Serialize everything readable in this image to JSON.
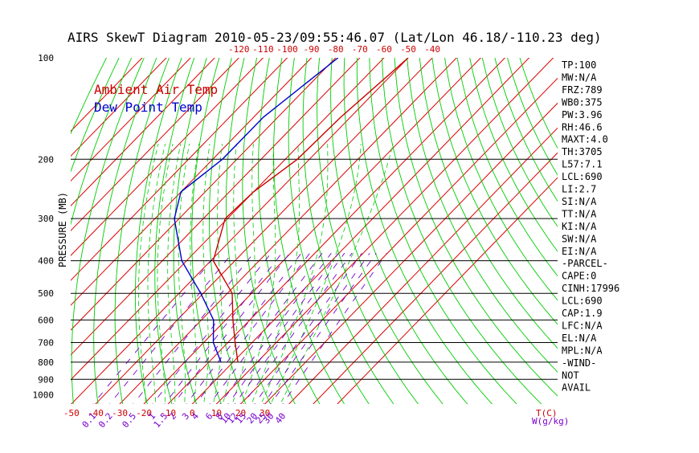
{
  "chart_data": {
    "type": "line",
    "title": "AIRS SkewT Diagram 2010-05-23/09:55:46.07 (Lat/Lon 46.18/-110.23 deg)",
    "ylabel": "PRESSURE (MB)",
    "xlabel": "T(C)",
    "mixing_ratio_label": "W(g/kg)",
    "pressure_ticks": [
      100,
      200,
      300,
      400,
      500,
      600,
      700,
      800,
      900,
      1000
    ],
    "pressure_lines": [
      200,
      300,
      400,
      500,
      600,
      700,
      800,
      900
    ],
    "ylim": [
      1050,
      100
    ],
    "top_temp_ticks": [
      -120,
      -110,
      -100,
      -90,
      -80,
      -70,
      -60,
      -50,
      -40
    ],
    "bottom_temp_ticks": [
      -50,
      -40,
      -30,
      -20,
      -10,
      0,
      10,
      20,
      30
    ],
    "mixing_ratio_ticks": [
      "0.1",
      "0.2",
      "0.5",
      "1",
      "1.5",
      "2",
      "3",
      "4",
      "6",
      "8",
      "10",
      "12",
      "15",
      "20",
      "25",
      "30",
      "40"
    ],
    "colors": {
      "temperature": "#cc0000",
      "dewpoint": "#0000cc",
      "isotherm": "#dd0000",
      "dry_adiabat": "#00cc00",
      "moist_adiabat": "#00cc00",
      "mixing_ratio": "#7700cc",
      "isobar": "#000000",
      "label": "#cc0000"
    },
    "series": [
      {
        "name": "Ambient Air Temp",
        "color": "#cc0000",
        "points": [
          [
            100,
            -50
          ],
          [
            150,
            -54
          ],
          [
            200,
            -55
          ],
          [
            250,
            -60
          ],
          [
            300,
            -61
          ],
          [
            400,
            -49
          ],
          [
            500,
            -28
          ],
          [
            600,
            -17
          ],
          [
            700,
            -7
          ],
          [
            800,
            2
          ]
        ]
      },
      {
        "name": "Dew Point Temp",
        "color": "#0000cc",
        "points": [
          [
            100,
            -79
          ],
          [
            150,
            -86
          ],
          [
            200,
            -86
          ],
          [
            250,
            -90
          ],
          [
            300,
            -82
          ],
          [
            400,
            -62
          ],
          [
            500,
            -41
          ],
          [
            600,
            -25
          ],
          [
            700,
            -16
          ],
          [
            800,
            -5
          ]
        ]
      }
    ],
    "legend": [
      "Ambient Air Temp",
      "Dew Point Temp"
    ],
    "legend_position": "top-left",
    "side_labels": [
      "TP:100",
      "MW:N/A",
      "FRZ:789",
      "WB0:375",
      "PW:3.96",
      "RH:46.6",
      "MAXT:4.0",
      "TH:3705",
      "L57:7.1",
      "LCL:690",
      "LI:2.7",
      "SI:N/A",
      "TT:N/A",
      "KI:N/A",
      "SW:N/A",
      "EI:N/A",
      "-PARCEL-",
      "CAPE:0",
      "CINH:17996",
      "LCL:690",
      "CAP:1.9",
      "LFC:N/A",
      "EL:N/A",
      "MPL:N/A",
      "-WIND-",
      " NOT",
      " AVAIL"
    ]
  }
}
